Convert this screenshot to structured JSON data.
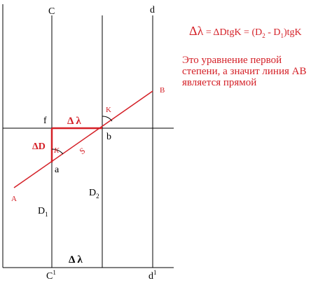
{
  "colors": {
    "ink": "#000000",
    "accent": "#d42027"
  },
  "labels": {
    "top_c": "C",
    "top_d": "d",
    "bottom_c": "C",
    "bottom_c_sup": "1",
    "bottom_d": "d",
    "bottom_d_sup": "1",
    "point_f": "f",
    "point_b": "b",
    "point_a": "a",
    "point_A": "A",
    "point_B": "B",
    "angle_K_top": "K",
    "angle_K_mid": "K",
    "segment_S": "S",
    "delta_lambda_top": "Δ λ",
    "delta_D": "ΔD",
    "delta_lambda_bottom": "Δ λ",
    "d1_main": "D",
    "d1_sub": "1",
    "d2_main": "D",
    "d2_sub": "2"
  },
  "formula": {
    "lhs": "Δλ",
    "eq": " = ΔDtgK = (D",
    "sub2": "2",
    "mid": " - D",
    "sub1": "1",
    "tail": ")tgK"
  },
  "note": "Это уравнение первой степени, а значит линия АВ является прямой"
}
